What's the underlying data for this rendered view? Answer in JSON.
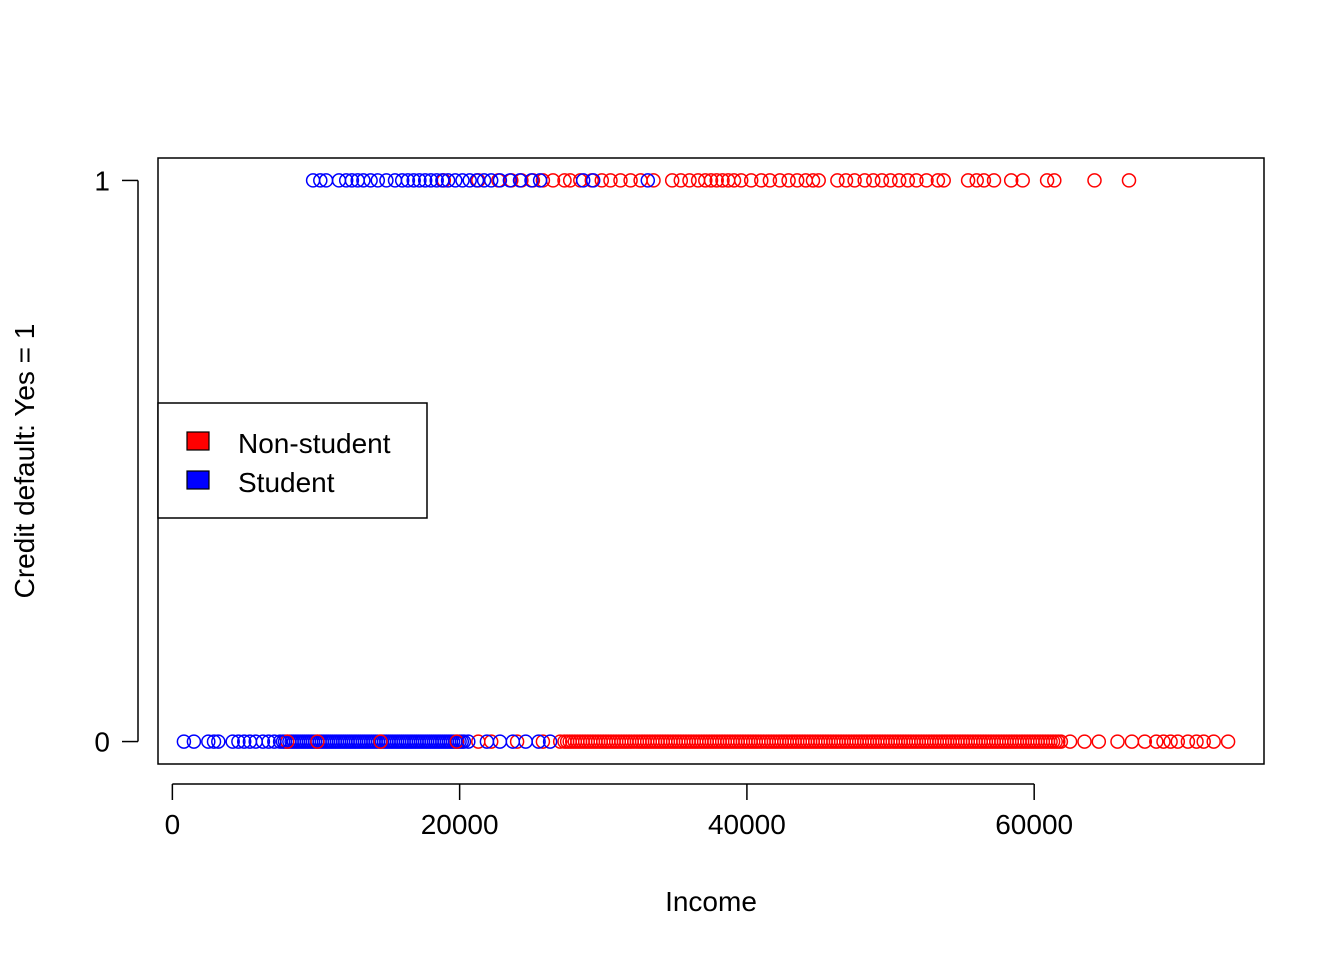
{
  "chart_data": {
    "type": "scatter",
    "title": "",
    "xlabel": "Income",
    "ylabel": "Credit default: Yes = 1",
    "xlim": [
      -1000,
      76000
    ],
    "ylim": [
      -0.04,
      1.04
    ],
    "x_ticks": [
      0,
      20000,
      40000,
      60000
    ],
    "x_tick_labels": [
      "0",
      "20000",
      "40000",
      "60000"
    ],
    "y_ticks": [
      0,
      1
    ],
    "y_tick_labels": [
      "0",
      "1"
    ],
    "grid": false,
    "marker": "open-circle",
    "legend": {
      "placement": "left",
      "entries": [
        {
          "label": "Non-student",
          "color": "#ff0000"
        },
        {
          "label": "Student",
          "color": "#0000ff"
        }
      ]
    },
    "series": [
      {
        "name": "Non-student",
        "color": "#ff0000",
        "points": [
          {
            "x": 8000,
            "y": 0
          },
          {
            "x": 10100,
            "y": 0
          },
          {
            "x": 14500,
            "y": 0
          },
          {
            "x": 19800,
            "y": 0
          },
          {
            "x": 21300,
            "y": 0
          },
          {
            "x": 22200,
            "y": 0
          },
          {
            "x": 24000,
            "y": 0
          },
          {
            "x": 25800,
            "y": 0
          },
          {
            "x": 27000,
            "y": 0
          },
          {
            "x": 62500,
            "y": 0
          },
          {
            "x": 63500,
            "y": 0
          },
          {
            "x": 64500,
            "y": 0
          },
          {
            "x": 65800,
            "y": 0
          },
          {
            "x": 66800,
            "y": 0
          },
          {
            "x": 67700,
            "y": 0
          },
          {
            "x": 68500,
            "y": 0
          },
          {
            "x": 69000,
            "y": 0
          },
          {
            "x": 69500,
            "y": 0
          },
          {
            "x": 70000,
            "y": 0
          },
          {
            "x": 70700,
            "y": 0
          },
          {
            "x": 71300,
            "y": 0
          },
          {
            "x": 71800,
            "y": 0
          },
          {
            "x": 72500,
            "y": 0
          },
          {
            "x": 73500,
            "y": 0
          },
          {
            "x": 18900,
            "y": 1
          },
          {
            "x": 21300,
            "y": 1
          },
          {
            "x": 22700,
            "y": 1
          },
          {
            "x": 23600,
            "y": 1
          },
          {
            "x": 24300,
            "y": 1
          },
          {
            "x": 25100,
            "y": 1
          },
          {
            "x": 25800,
            "y": 1
          },
          {
            "x": 26500,
            "y": 1
          },
          {
            "x": 27300,
            "y": 1
          },
          {
            "x": 27700,
            "y": 1
          },
          {
            "x": 28400,
            "y": 1
          },
          {
            "x": 29200,
            "y": 1
          },
          {
            "x": 29900,
            "y": 1
          },
          {
            "x": 30500,
            "y": 1
          },
          {
            "x": 31200,
            "y": 1
          },
          {
            "x": 31900,
            "y": 1
          },
          {
            "x": 32600,
            "y": 1
          },
          {
            "x": 33500,
            "y": 1
          },
          {
            "x": 34800,
            "y": 1
          },
          {
            "x": 35400,
            "y": 1
          },
          {
            "x": 36000,
            "y": 1
          },
          {
            "x": 36600,
            "y": 1
          },
          {
            "x": 37100,
            "y": 1
          },
          {
            "x": 37500,
            "y": 1
          },
          {
            "x": 37900,
            "y": 1
          },
          {
            "x": 38300,
            "y": 1
          },
          {
            "x": 38700,
            "y": 1
          },
          {
            "x": 39100,
            "y": 1
          },
          {
            "x": 39600,
            "y": 1
          },
          {
            "x": 40300,
            "y": 1
          },
          {
            "x": 41000,
            "y": 1
          },
          {
            "x": 41600,
            "y": 1
          },
          {
            "x": 42300,
            "y": 1
          },
          {
            "x": 42900,
            "y": 1
          },
          {
            "x": 43500,
            "y": 1
          },
          {
            "x": 44100,
            "y": 1
          },
          {
            "x": 44600,
            "y": 1
          },
          {
            "x": 45000,
            "y": 1
          },
          {
            "x": 46300,
            "y": 1
          },
          {
            "x": 46900,
            "y": 1
          },
          {
            "x": 47500,
            "y": 1
          },
          {
            "x": 48200,
            "y": 1
          },
          {
            "x": 48800,
            "y": 1
          },
          {
            "x": 49400,
            "y": 1
          },
          {
            "x": 50000,
            "y": 1
          },
          {
            "x": 50600,
            "y": 1
          },
          {
            "x": 51200,
            "y": 1
          },
          {
            "x": 51800,
            "y": 1
          },
          {
            "x": 52500,
            "y": 1
          },
          {
            "x": 53300,
            "y": 1
          },
          {
            "x": 53700,
            "y": 1
          },
          {
            "x": 55400,
            "y": 1
          },
          {
            "x": 56000,
            "y": 1
          },
          {
            "x": 56500,
            "y": 1
          },
          {
            "x": 57200,
            "y": 1
          },
          {
            "x": 58400,
            "y": 1
          },
          {
            "x": 59200,
            "y": 1
          },
          {
            "x": 60900,
            "y": 1
          },
          {
            "x": 61400,
            "y": 1
          },
          {
            "x": 64200,
            "y": 1
          },
          {
            "x": 66600,
            "y": 1
          }
        ],
        "dense_bands": [
          {
            "y": 0,
            "x_from": 27300,
            "x_to": 62000,
            "step": 180
          }
        ]
      },
      {
        "name": "Student",
        "color": "#0000ff",
        "points": [
          {
            "x": 800,
            "y": 0
          },
          {
            "x": 1500,
            "y": 0
          },
          {
            "x": 2500,
            "y": 0
          },
          {
            "x": 2900,
            "y": 0
          },
          {
            "x": 3200,
            "y": 0
          },
          {
            "x": 4200,
            "y": 0
          },
          {
            "x": 4600,
            "y": 0
          },
          {
            "x": 5000,
            "y": 0
          },
          {
            "x": 5400,
            "y": 0
          },
          {
            "x": 5800,
            "y": 0
          },
          {
            "x": 6300,
            "y": 0
          },
          {
            "x": 6700,
            "y": 0
          },
          {
            "x": 7100,
            "y": 0
          },
          {
            "x": 7500,
            "y": 0
          },
          {
            "x": 20600,
            "y": 0
          },
          {
            "x": 21900,
            "y": 0
          },
          {
            "x": 22800,
            "y": 0
          },
          {
            "x": 23700,
            "y": 0
          },
          {
            "x": 24600,
            "y": 0
          },
          {
            "x": 25500,
            "y": 0
          },
          {
            "x": 26300,
            "y": 0
          },
          {
            "x": 9800,
            "y": 1
          },
          {
            "x": 10300,
            "y": 1
          },
          {
            "x": 10700,
            "y": 1
          },
          {
            "x": 11600,
            "y": 1
          },
          {
            "x": 12100,
            "y": 1
          },
          {
            "x": 12500,
            "y": 1
          },
          {
            "x": 12900,
            "y": 1
          },
          {
            "x": 13300,
            "y": 1
          },
          {
            "x": 13800,
            "y": 1
          },
          {
            "x": 14300,
            "y": 1
          },
          {
            "x": 14900,
            "y": 1
          },
          {
            "x": 15500,
            "y": 1
          },
          {
            "x": 16000,
            "y": 1
          },
          {
            "x": 16400,
            "y": 1
          },
          {
            "x": 16800,
            "y": 1
          },
          {
            "x": 17200,
            "y": 1
          },
          {
            "x": 17600,
            "y": 1
          },
          {
            "x": 18000,
            "y": 1
          },
          {
            "x": 18400,
            "y": 1
          },
          {
            "x": 18800,
            "y": 1
          },
          {
            "x": 19200,
            "y": 1
          },
          {
            "x": 19700,
            "y": 1
          },
          {
            "x": 20200,
            "y": 1
          },
          {
            "x": 20700,
            "y": 1
          },
          {
            "x": 21200,
            "y": 1
          },
          {
            "x": 21700,
            "y": 1
          },
          {
            "x": 22200,
            "y": 1
          },
          {
            "x": 22800,
            "y": 1
          },
          {
            "x": 23500,
            "y": 1
          },
          {
            "x": 24200,
            "y": 1
          },
          {
            "x": 25000,
            "y": 1
          },
          {
            "x": 25600,
            "y": 1
          },
          {
            "x": 28600,
            "y": 1
          },
          {
            "x": 29300,
            "y": 1
          },
          {
            "x": 33100,
            "y": 1
          }
        ],
        "dense_bands": [
          {
            "y": 0,
            "x_from": 7700,
            "x_to": 20300,
            "step": 150
          }
        ]
      }
    ]
  }
}
